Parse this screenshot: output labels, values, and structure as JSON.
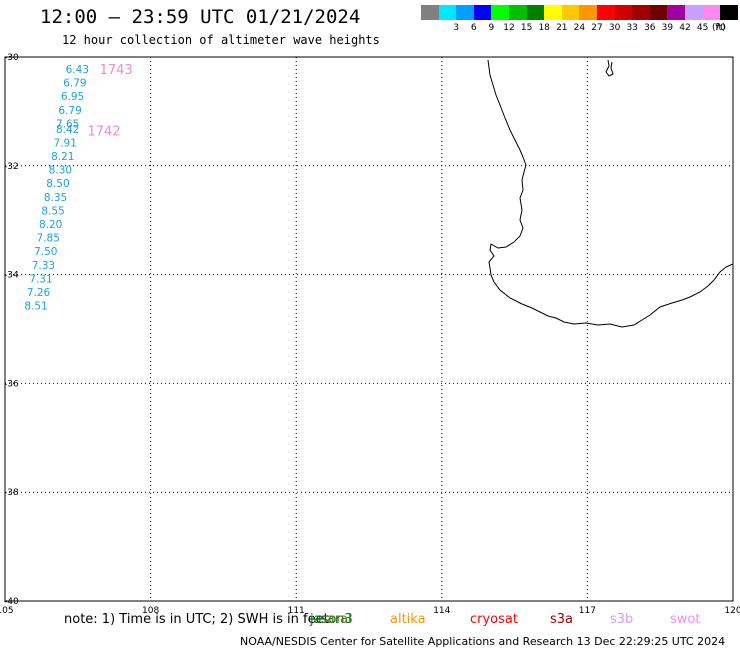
{
  "header": {
    "title": "12:00 — 23:59 UTC 01/21/2024",
    "subtitle": "12 hour collection of altimeter wave heights"
  },
  "legend": {
    "unit_label": "(ft)",
    "bins": [
      {
        "label": "",
        "color": "#808080"
      },
      {
        "label": "3",
        "color": "#00e8ff"
      },
      {
        "label": "6",
        "color": "#00a0ff"
      },
      {
        "label": "9",
        "color": "#0000ff"
      },
      {
        "label": "12",
        "color": "#00ff00"
      },
      {
        "label": "15",
        "color": "#00c000"
      },
      {
        "label": "18",
        "color": "#008000"
      },
      {
        "label": "21",
        "color": "#ffff00"
      },
      {
        "label": "24",
        "color": "#ffc800"
      },
      {
        "label": "27",
        "color": "#ff9600"
      },
      {
        "label": "30",
        "color": "#ff0000"
      },
      {
        "label": "33",
        "color": "#d00000"
      },
      {
        "label": "36",
        "color": "#a00000"
      },
      {
        "label": "39",
        "color": "#700000"
      },
      {
        "label": "42",
        "color": "#a000a0"
      },
      {
        "label": "45",
        "color": "#c8a0ff"
      },
      {
        "label": "70",
        "color": "#ff88ee"
      },
      {
        "label": "",
        "color": "#000000"
      }
    ]
  },
  "map": {
    "lon_range": [
      105,
      120
    ],
    "lat_range": [
      -40,
      -30
    ],
    "lon_ticks": [
      "105",
      "108",
      "111",
      "114",
      "117",
      "120"
    ],
    "lat_ticks": [
      "-30",
      "-32",
      "-34",
      "-36",
      "-38",
      "-40"
    ],
    "observation_color": "#1aa3d9",
    "pass_label_color": "#ee88dd"
  },
  "observations": [
    {
      "value": "6.43",
      "lon": 106.25,
      "lat": -30.22
    },
    {
      "value": "6.79",
      "lon": 106.2,
      "lat": -30.47
    },
    {
      "value": "6.95",
      "lon": 106.15,
      "lat": -30.72
    },
    {
      "value": "6.79",
      "lon": 106.1,
      "lat": -30.97
    },
    {
      "value": "7.65",
      "lon": 106.05,
      "lat": -31.22
    },
    {
      "value": "8.42",
      "lon": 106.05,
      "lat": -31.32
    },
    {
      "value": "7.91",
      "lon": 106.0,
      "lat": -31.57
    },
    {
      "value": "8.21",
      "lon": 105.95,
      "lat": -31.82
    },
    {
      "value": "8.30",
      "lon": 105.9,
      "lat": -32.07
    },
    {
      "value": "8.50",
      "lon": 105.85,
      "lat": -32.32
    },
    {
      "value": "8.35",
      "lon": 105.8,
      "lat": -32.57
    },
    {
      "value": "8.55",
      "lon": 105.75,
      "lat": -32.82
    },
    {
      "value": "8.20",
      "lon": 105.7,
      "lat": -33.07
    },
    {
      "value": "7.85",
      "lon": 105.65,
      "lat": -33.32
    },
    {
      "value": "7.50",
      "lon": 105.6,
      "lat": -33.57
    },
    {
      "value": "7.33",
      "lon": 105.55,
      "lat": -33.82
    },
    {
      "value": "7.31",
      "lon": 105.5,
      "lat": -34.07
    },
    {
      "value": "7.26",
      "lon": 105.45,
      "lat": -34.32
    },
    {
      "value": "8.51",
      "lon": 105.4,
      "lat": -34.57
    }
  ],
  "passes": [
    {
      "label": "1743",
      "lon": 106.95,
      "lat": -30.22
    },
    {
      "label": "1742",
      "lon": 106.7,
      "lat": -31.35
    }
  ],
  "footer": {
    "note": "note: 1) Time is in UTC; 2) SWH is in feet",
    "satellites": [
      {
        "name": "jason3",
        "color": "#008000"
      },
      {
        "name": "saral",
        "color": "#556b2f"
      },
      {
        "name": "altika",
        "color": "#ff9600"
      },
      {
        "name": "cryosat",
        "color": "#ff0000"
      },
      {
        "name": "s3a",
        "color": "#a00000"
      },
      {
        "name": "s3b",
        "color": "#c8a0ff"
      },
      {
        "name": "swot",
        "color": "#ff88ee"
      }
    ],
    "credit": "NOAA/NESDIS Center for Satellite Applications and Research    13 Dec 22:29:25 UTC 2024"
  }
}
